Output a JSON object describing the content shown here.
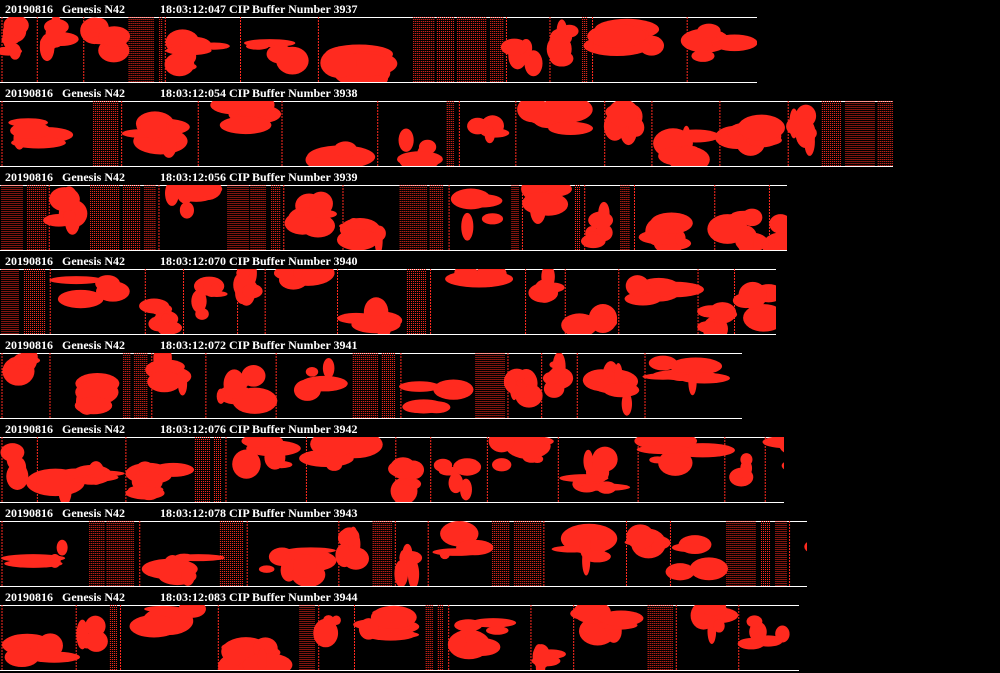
{
  "colors": {
    "background": "#000000",
    "particle": "#ff2a1f",
    "text": "#ffffff",
    "rule": "#ffffff"
  },
  "strips": [
    {
      "date": "20190816",
      "probe": "Genesis N42",
      "time": "18:03:12:047",
      "buffer_label": "CIP Buffer Number 3937"
    },
    {
      "date": "20190816",
      "probe": "Genesis N42",
      "time": "18:03:12:054",
      "buffer_label": "CIP Buffer Number 3938"
    },
    {
      "date": "20190816",
      "probe": "Genesis N42",
      "time": "18:03:12:056",
      "buffer_label": "CIP Buffer Number 3939"
    },
    {
      "date": "20190816",
      "probe": "Genesis N42",
      "time": "18:03:12:070",
      "buffer_label": "CIP Buffer Number 3940"
    },
    {
      "date": "20190816",
      "probe": "Genesis N42",
      "time": "18:03:12:072",
      "buffer_label": "CIP Buffer Number 3941"
    },
    {
      "date": "20190816",
      "probe": "Genesis N42",
      "time": "18:03:12:076",
      "buffer_label": "CIP Buffer Number 3942"
    },
    {
      "date": "20190816",
      "probe": "Genesis N42",
      "time": "18:03:12:078",
      "buffer_label": "CIP Buffer Number 3943"
    },
    {
      "date": "20190816",
      "probe": "Genesis N42",
      "time": "18:03:12:083",
      "buffer_label": "CIP Buffer Number 3944"
    }
  ]
}
